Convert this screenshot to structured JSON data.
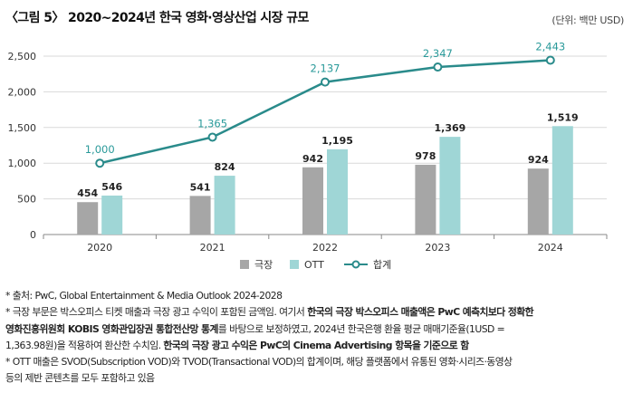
{
  "header": {
    "title": "〈그림 5〉 2020~2024년 한국 영화·영상산업 시장 규모",
    "unit": "(단위: 백만 USD)"
  },
  "chart_data": {
    "type": "bar",
    "categories": [
      "2020",
      "2021",
      "2022",
      "2023",
      "2024"
    ],
    "series": [
      {
        "name": "극장",
        "values": [
          454,
          541,
          942,
          978,
          924
        ],
        "color": "#a6a6a6"
      },
      {
        "name": "OTT",
        "values": [
          546,
          824,
          1195,
          1369,
          1519
        ],
        "color": "#9fd6d6"
      },
      {
        "name": "합계",
        "type": "line",
        "values": [
          1000,
          1365,
          2137,
          2347,
          2443
        ],
        "labels": [
          "1,000",
          "1,365",
          "2,137",
          "2,347",
          "2,443"
        ],
        "color": "#2a8b8b"
      }
    ],
    "bar_labels": {
      "극장": [
        "454",
        "541",
        "942",
        "978",
        "924"
      ],
      "OTT": [
        "546",
        "824",
        "1,195",
        "1,369",
        "1,519"
      ]
    },
    "yticks": [
      0,
      500,
      1000,
      1500,
      2000,
      2500
    ],
    "ytick_labels": [
      "0",
      "500",
      "1,000",
      "1,500",
      "2,000",
      "2,500"
    ],
    "ylim": [
      0,
      2500
    ],
    "legend": [
      "극장",
      "OTT",
      "합계"
    ]
  },
  "notes": {
    "line1": "* 출처: PwC, Global Entertainment & Media Outlook 2024-2028",
    "line2_a": "* 극장 부문은 박스오피스 티켓 매출과 극장 광고 수익이 포함된 금액임. 여기서 ",
    "line2_b": "한국의 극장 박스오피스 매출액은 PwC 예측치보다 정확한",
    "line3_a": "영화진흥위원회 KOBIS 영화관입장권 통합전산망 통계",
    "line3_b": "를 바탕으로 보정하였고, 2024년 한국은행 환율 평균 매매기준율(1USD =",
    "line4_a": "1,363.98원)을 적용하여 환산한 수치임. ",
    "line4_b": "한국의 극장 광고 수익은 PwC의 Cinema Advertising 항목을 기준으로 함",
    "line5": "* OTT 매출은 SVOD(Subscription VOD)와 TVOD(Transactional VOD)의 합계이며, 해당 플랫폼에서 유통된 영화·시리즈·동영상",
    "line6": "등의 제반 콘텐츠를 모두 포함하고 있음"
  }
}
